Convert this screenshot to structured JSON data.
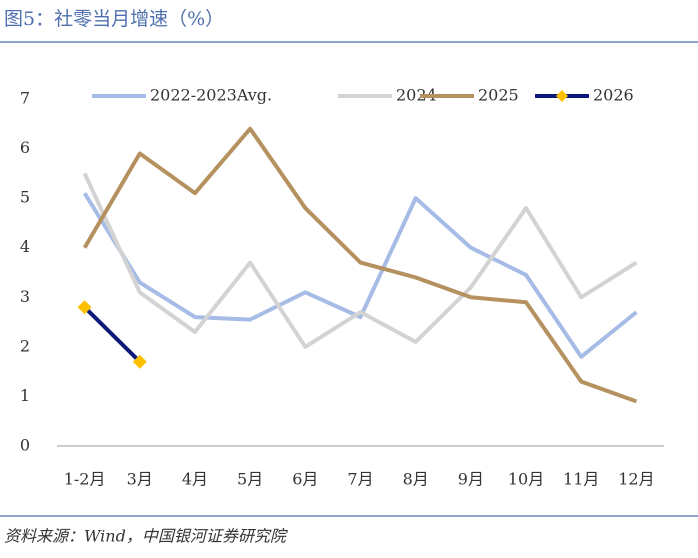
{
  "title": "图5：社零当月增速（%）",
  "source": "资料来源：Wind，中国银河证券研究院",
  "chart_data": {
    "type": "line",
    "categories": [
      "1-2月",
      "3月",
      "4月",
      "5月",
      "6月",
      "7月",
      "8月",
      "9月",
      "10月",
      "11月",
      "12月"
    ],
    "series": [
      {
        "name": "2022-2023Avg.",
        "color": "#a6bbe6",
        "values": [
          5.1,
          3.3,
          2.6,
          2.55,
          3.1,
          2.6,
          5.0,
          4.0,
          3.45,
          1.8,
          2.7
        ]
      },
      {
        "name": "2024",
        "color": "#d3d3d3",
        "values": [
          5.5,
          3.1,
          2.3,
          3.7,
          2.0,
          2.7,
          2.1,
          3.2,
          4.8,
          3.0,
          3.7
        ]
      },
      {
        "name": "2025",
        "color": "#b5915f",
        "values": [
          4.0,
          5.9,
          5.1,
          6.4,
          4.8,
          3.7,
          3.4,
          3.0,
          2.9,
          1.3,
          0.9
        ]
      },
      {
        "name": "2026",
        "color": "#0b1a78",
        "marker_color": "#ffc000",
        "values": [
          2.8,
          1.7,
          null,
          null,
          null,
          null,
          null,
          null,
          null,
          null,
          null
        ]
      }
    ],
    "ylim": [
      0,
      7
    ],
    "yticks": [
      0,
      1,
      2,
      3,
      4,
      5,
      6,
      7
    ],
    "grid": false,
    "legend": "top"
  }
}
